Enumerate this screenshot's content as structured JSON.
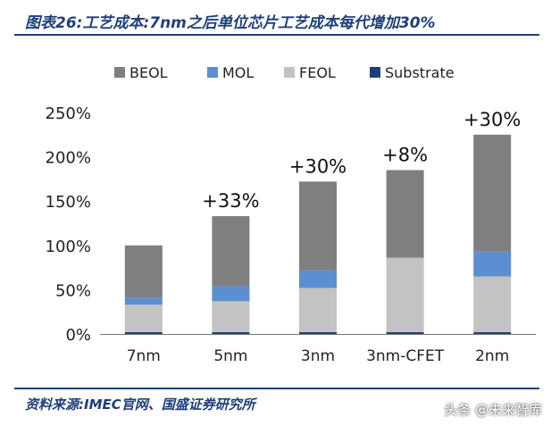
{
  "header": {
    "title": "图表26:工艺成本:7nm之后单位芯片工艺成本每代增加30%"
  },
  "footer": {
    "source": "资料来源:IMEC官网、国盛证券研究所"
  },
  "watermark": {
    "text": "头条 @未来智库"
  },
  "chart_data": {
    "type": "bar",
    "stacked": true,
    "categories": [
      "7nm",
      "5nm",
      "3nm",
      "3nm-CFET",
      "2nm"
    ],
    "series": [
      {
        "name": "Substrate",
        "color": "#1f3f7a",
        "values": [
          2,
          2,
          2,
          2,
          2
        ]
      },
      {
        "name": "FEOL",
        "color": "#c3c3c3",
        "values": [
          31,
          35,
          50,
          84,
          63
        ]
      },
      {
        "name": "MOL",
        "color": "#5b8fd1",
        "values": [
          8,
          17,
          20,
          0,
          28
        ]
      },
      {
        "name": "BEOL",
        "color": "#7f7f7f",
        "values": [
          59,
          79,
          100,
          99,
          132
        ]
      }
    ],
    "legend_order": [
      "BEOL",
      "MOL",
      "FEOL",
      "Substrate"
    ],
    "annotations": [
      "",
      "+33%",
      "+30%",
      "+8%",
      "+30%"
    ],
    "yticks": [
      "0%",
      "50%",
      "100%",
      "150%",
      "200%",
      "250%"
    ],
    "ylim": [
      0,
      250
    ],
    "ystep": 50,
    "legend_position": "top",
    "grid": false
  }
}
